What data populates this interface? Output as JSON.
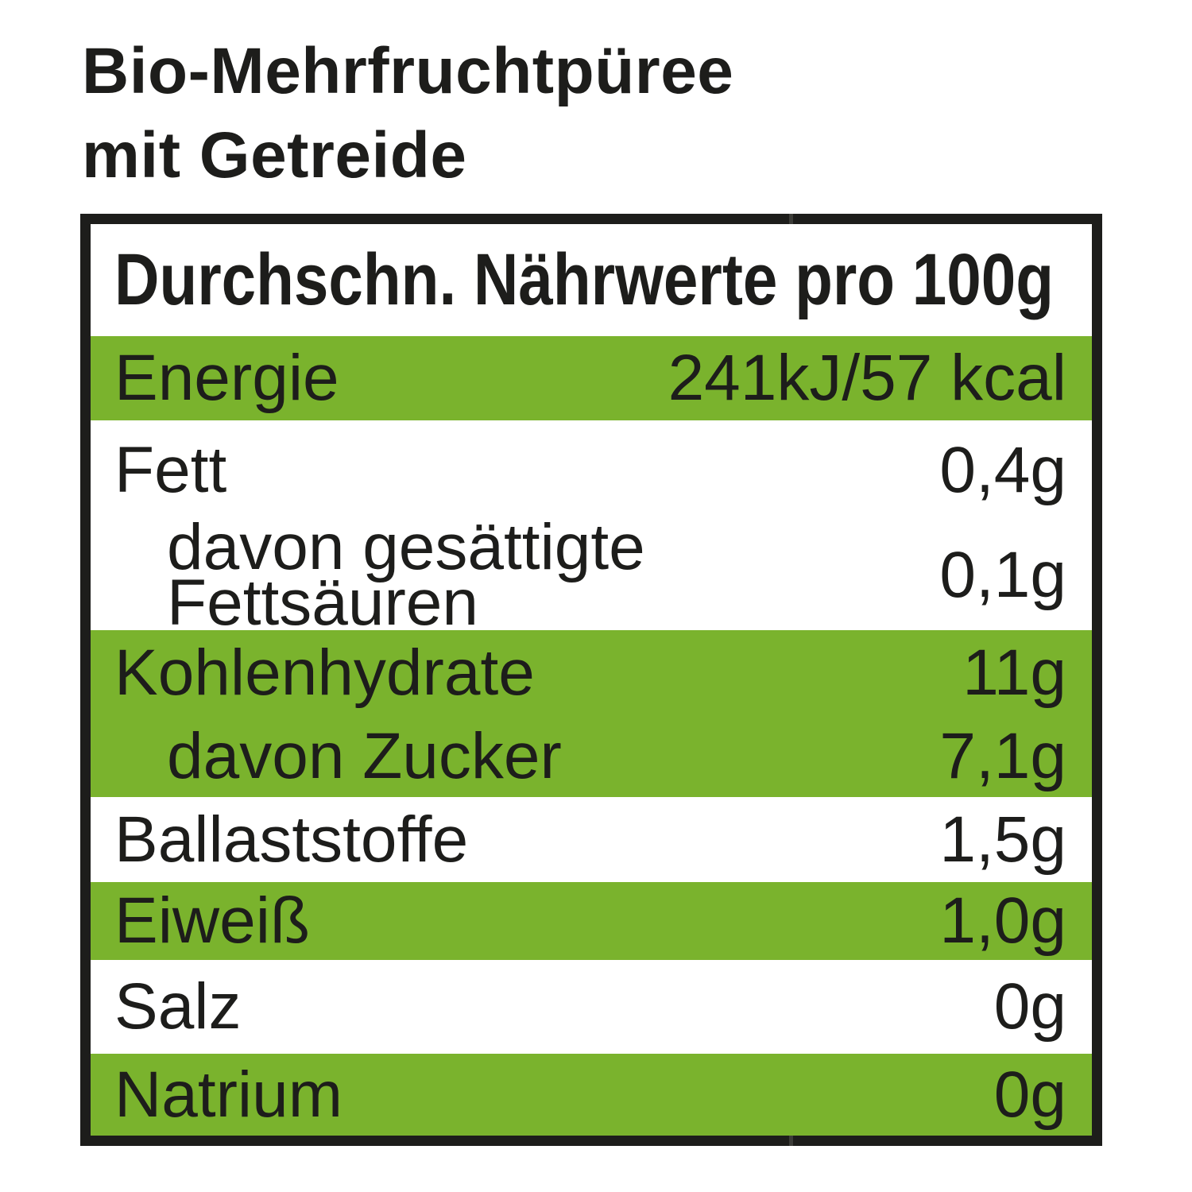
{
  "title": {
    "text": "Bio-Mehrfruchtpüree\nmit Getreide"
  },
  "table": {
    "header": "Durchschn. Nährwerte pro 100g",
    "rows": [
      {
        "name": "energie",
        "label": "Energie",
        "value": "241kJ/57 kcal",
        "highlight": true,
        "indent": false
      },
      {
        "name": "fett",
        "label": "Fett",
        "value": "0,4g",
        "highlight": false,
        "indent": false
      },
      {
        "name": "gesaettigte",
        "label": "davon gesättigte\nFettsäuren",
        "value": "0,1g",
        "highlight": false,
        "indent": true
      },
      {
        "name": "kohlenhydrate",
        "label": "Kohlenhydrate",
        "value": "11g",
        "highlight": true,
        "indent": false
      },
      {
        "name": "zucker",
        "label": "davon Zucker",
        "value": "7,1g",
        "highlight": true,
        "indent": true
      },
      {
        "name": "ballaststoffe",
        "label": "Ballaststoffe",
        "value": "1,5g",
        "highlight": false,
        "indent": false
      },
      {
        "name": "eiweiss",
        "label": "Eiweiß",
        "value": "1,0g",
        "highlight": true,
        "indent": false
      },
      {
        "name": "salz",
        "label": "Salz",
        "value": "0g",
        "highlight": false,
        "indent": false
      },
      {
        "name": "natrium",
        "label": "Natrium",
        "value": "0g",
        "highlight": true,
        "indent": false
      }
    ],
    "colors": {
      "highlight_green": "#7ab32d",
      "text_black": "#1d1d1b",
      "border_black": "#1d1d1b",
      "background": "#ffffff"
    }
  }
}
